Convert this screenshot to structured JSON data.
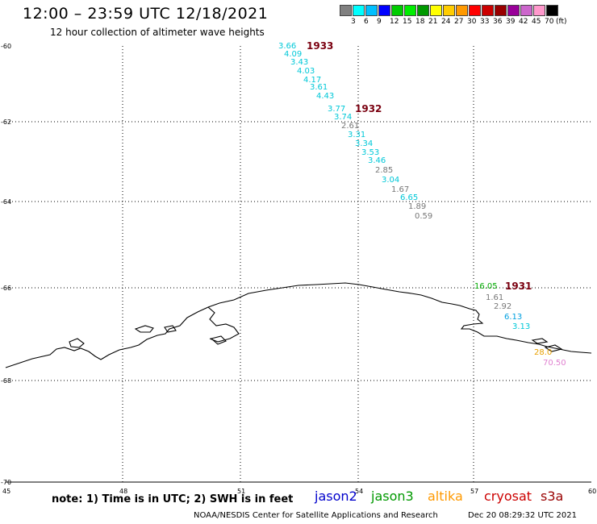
{
  "header": {
    "title": "12:00 – 23:59 UTC 12/18/2021",
    "subtitle": "12 hour collection of altimeter wave heights"
  },
  "scale": {
    "colors": [
      "#808080",
      "#00ffff",
      "#00bfff",
      "#0000ff",
      "#00cc00",
      "#00ee00",
      "#009900",
      "#ffff00",
      "#ffcc00",
      "#ff9900",
      "#ff0000",
      "#cc0000",
      "#990000",
      "#990099",
      "#cc66cc",
      "#ff99cc",
      "#000000"
    ],
    "labels": [
      "3",
      "6",
      "9",
      "12",
      "15",
      "18",
      "21",
      "24",
      "27",
      "30",
      "33",
      "36",
      "39",
      "42",
      "45",
      "70",
      "(ft)"
    ]
  },
  "axes": {
    "lat_labels": [
      "-60",
      "-62",
      "-64",
      "-66",
      "-68",
      "-70"
    ],
    "lon_labels": [
      "45",
      "48",
      "51",
      "54",
      "57",
      "60"
    ]
  },
  "passes": [
    {
      "id": "1933",
      "color": "#7a0010"
    },
    {
      "id": "1932",
      "color": "#7a0010"
    },
    {
      "id": "1931",
      "color": "#7a0010"
    }
  ],
  "observations": [
    {
      "text": "3.66",
      "color": "#00c8d8"
    },
    {
      "text": "4.09",
      "color": "#00c8d8"
    },
    {
      "text": "3.43",
      "color": "#00c8d8"
    },
    {
      "text": "4.03",
      "color": "#00c8d8"
    },
    {
      "text": "4.17",
      "color": "#00c8d8"
    },
    {
      "text": "3.61",
      "color": "#00c8d8"
    },
    {
      "text": "4.43",
      "color": "#00c8d8"
    },
    {
      "text": "3.77",
      "color": "#00c8d8"
    },
    {
      "text": "3.74",
      "color": "#00c8d8"
    },
    {
      "text": "2.61",
      "color": "#777777"
    },
    {
      "text": "3.31",
      "color": "#00c8d8"
    },
    {
      "text": "3.34",
      "color": "#00c8d8"
    },
    {
      "text": "3.53",
      "color": "#00c8d8"
    },
    {
      "text": "3.46",
      "color": "#00c8d8"
    },
    {
      "text": "2.85",
      "color": "#777777"
    },
    {
      "text": "3.04",
      "color": "#00c8d8"
    },
    {
      "text": "1.67",
      "color": "#777777"
    },
    {
      "text": "6.65",
      "color": "#00c8d8"
    },
    {
      "text": "1.89",
      "color": "#777777"
    },
    {
      "text": "0.59",
      "color": "#777777"
    },
    {
      "text": "16.05",
      "color": "#00aa00"
    },
    {
      "text": "1.61",
      "color": "#777777"
    },
    {
      "text": "2.92",
      "color": "#777777"
    },
    {
      "text": "6.13",
      "color": "#00a0e0"
    },
    {
      "text": "3.13",
      "color": "#00c8d8"
    },
    {
      "text": "28.0",
      "color": "#e8a000"
    },
    {
      "text": "70.50",
      "color": "#e080d0"
    }
  ],
  "footer": {
    "note": "note:  1) Time is in UTC;  2) SWH is in feet",
    "legend": [
      {
        "name": "jason2",
        "color": "#0000cc"
      },
      {
        "name": "jason3",
        "color": "#009900"
      },
      {
        "name": "altika",
        "color": "#ff9900"
      },
      {
        "name": "cryosat",
        "color": "#cc0000"
      },
      {
        "name": "s3a",
        "color": "#990000"
      }
    ],
    "credit": "NOAA/NESDIS Center for Satellite Applications and Research",
    "timestamp": "Dec 20 08:29:32 UTC 2021"
  }
}
